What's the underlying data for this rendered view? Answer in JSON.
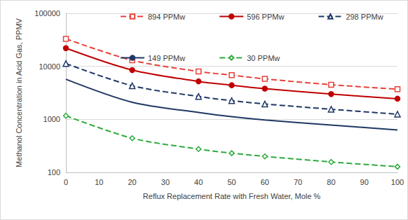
{
  "chart_data": {
    "type": "line",
    "x_label": "Reflux Replacement Rate with Fresh Water, Mole %",
    "y_label": "Methanol Concentration in Acid Gas, PPMV",
    "x": [
      0,
      20,
      40,
      50,
      60,
      80,
      100
    ],
    "series": [
      {
        "name": "894 PPMw",
        "color": "#e8413a",
        "marker": "open-square",
        "line_style": "dashed",
        "values": [
          33000,
          13000,
          8000,
          6800,
          5800,
          4500,
          3700
        ]
      },
      {
        "name": "596 PPMw",
        "color": "#c00000",
        "marker": "circle",
        "line_style": "solid",
        "values": [
          22000,
          8500,
          5200,
          4400,
          3800,
          3000,
          2450
        ]
      },
      {
        "name": "298 PPMw",
        "color": "#203864",
        "marker": "open-triangle",
        "line_style": "dashed",
        "values": [
          11300,
          4300,
          2700,
          2250,
          1950,
          1550,
          1250
        ]
      },
      {
        "name": "149 PPMw",
        "color": "#203864",
        "marker": "none",
        "line_style": "solid",
        "values": [
          5700,
          2100,
          1350,
          1120,
          970,
          780,
          630
        ]
      },
      {
        "name": "30 PPMw",
        "color": "#2eaa3c",
        "marker": "open-diamond",
        "line_style": "dashed",
        "values": [
          1170,
          440,
          275,
          230,
          200,
          157,
          128
        ]
      }
    ],
    "xlim": [
      0,
      100
    ],
    "xticks": [
      0,
      10,
      20,
      30,
      40,
      50,
      60,
      70,
      80,
      90,
      100
    ],
    "ylim": [
      100,
      100000
    ],
    "yticks": [
      100,
      1000,
      10000,
      100000
    ],
    "log": "y",
    "grid": true,
    "legend": "top"
  }
}
